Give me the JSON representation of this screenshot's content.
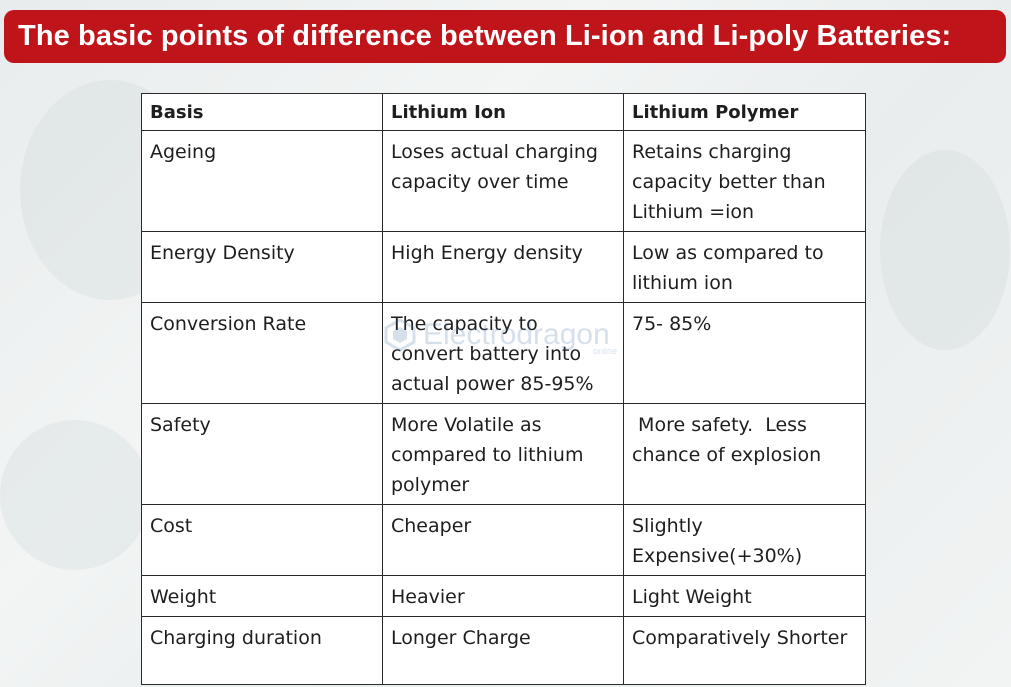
{
  "banner": {
    "title": "The basic points of difference between Li-ion and Li-poly Batteries:"
  },
  "table": {
    "headers": [
      "Basis",
      "Lithium Ion",
      "Lithium Polymer"
    ],
    "rows": [
      [
        "Ageing",
        "Loses actual charging capacity over time",
        "Retains charging capacity better than Lithium =ion"
      ],
      [
        "Energy Density",
        "High Energy density",
        "Low as compared to lithium ion"
      ],
      [
        "Conversion Rate",
        "The capacity to convert battery into actual power 85-95%",
        "75- 85%"
      ],
      [
        "Safety",
        "More Volatile as compared to lithium polymer",
        " More safety.  Less chance of explosion"
      ],
      [
        "Cost",
        "Cheaper",
        "Slightly Expensive(+30%)"
      ],
      [
        "Weight",
        "Heavier",
        "Light Weight"
      ],
      [
        "Charging duration",
        "Longer Charge",
        "Comparatively Shorter"
      ]
    ]
  },
  "watermark": {
    "text": "Electrodragon",
    "sub": "online",
    "color": "#4a78a8"
  },
  "colors": {
    "banner": "#c0141b",
    "banner_text": "#ffffff",
    "table_border": "#2a2a2a"
  }
}
